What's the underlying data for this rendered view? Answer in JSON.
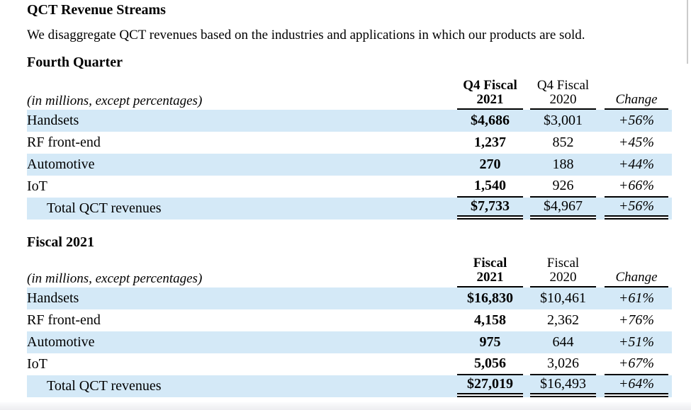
{
  "document": {
    "title": "QCT Revenue Streams",
    "intro": "We disaggregate QCT revenues based on the industries and applications in which our products are sold."
  },
  "colors": {
    "row_highlight": "#d4e9f7",
    "rule": "#000000"
  },
  "tables": [
    {
      "heading": "Fourth Quarter",
      "note": "(in millions, except percentages)",
      "col_current_line1": "Q4 Fiscal",
      "col_current_line2": "2021",
      "col_prior_line1": "Q4 Fiscal",
      "col_prior_line2": "2020",
      "col_change": "Change",
      "rows": [
        {
          "label": "Handsets",
          "current": "$4,686",
          "prior": "$3,001",
          "change": "+56%"
        },
        {
          "label": "RF front-end",
          "current": "1,237",
          "prior": "852",
          "change": "+45%"
        },
        {
          "label": "Automotive",
          "current": "270",
          "prior": "188",
          "change": "+44%"
        },
        {
          "label": "IoT",
          "current": "1,540",
          "prior": "926",
          "change": "+66%"
        }
      ],
      "total": {
        "label": "Total QCT revenues",
        "current": "$7,733",
        "prior": "$4,967",
        "change": "+56%"
      }
    },
    {
      "heading": "Fiscal 2021",
      "note": "(in millions, except percentages)",
      "col_current_line1": "Fiscal",
      "col_current_line2": "2021",
      "col_prior_line1": "Fiscal",
      "col_prior_line2": "2020",
      "col_change": "Change",
      "rows": [
        {
          "label": "Handsets",
          "current": "$16,830",
          "prior": "$10,461",
          "change": "+61%"
        },
        {
          "label": "RF front-end",
          "current": "4,158",
          "prior": "2,362",
          "change": "+76%"
        },
        {
          "label": "Automotive",
          "current": "975",
          "prior": "644",
          "change": "+51%"
        },
        {
          "label": "IoT",
          "current": "5,056",
          "prior": "3,026",
          "change": "+67%"
        }
      ],
      "total": {
        "label": "Total QCT revenues",
        "current": "$27,019",
        "prior": "$16,493",
        "change": "+64%"
      }
    }
  ]
}
